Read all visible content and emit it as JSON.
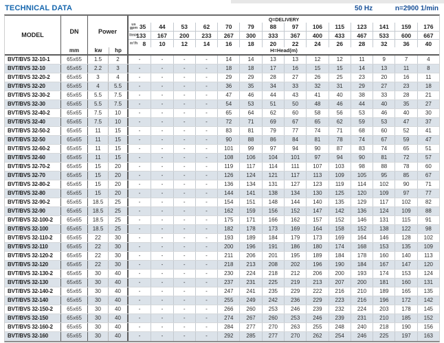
{
  "page": {
    "title": "TECHNICAL DATA",
    "frequency": "50 Hz",
    "speed": "n=2900 1/min"
  },
  "colors": {
    "title-blue": "#1566ae",
    "specs-blue": "#174f97",
    "stripe": "#dbe2e9"
  },
  "table": {
    "header": {
      "model": "MODEL",
      "dn": "DN",
      "dn_unit": "mm",
      "power": "Power",
      "kw": "kw",
      "hp": "hp",
      "delivery_label": "Q=DELIVERY",
      "head_label": "H=Head(m)",
      "flow_units": [
        "us gpm",
        "l/min",
        "m³/h"
      ],
      "gpm": [
        "35",
        "44",
        "53",
        "62",
        "70",
        "79",
        "88",
        "97",
        "106",
        "115",
        "123",
        "141",
        "159",
        "176"
      ],
      "lmin": [
        "133",
        "167",
        "200",
        "233",
        "267",
        "300",
        "333",
        "367",
        "400",
        "433",
        "467",
        "533",
        "600",
        "667"
      ],
      "m3h": [
        "8",
        "10",
        "12",
        "14",
        "16",
        "18",
        "20",
        "22",
        "24",
        "26",
        "28",
        "32",
        "36",
        "40"
      ]
    },
    "rows": [
      {
        "model": "BVT/BVS 32-10-1",
        "dn": "65x65",
        "kw": "1.5",
        "hp": "2",
        "head": [
          "-",
          "-",
          "-",
          "-",
          "14",
          "14",
          "13",
          "13",
          "12",
          "12",
          "11",
          "9",
          "7",
          "4"
        ]
      },
      {
        "model": "BVT/BVS 32-10",
        "dn": "65x65",
        "kw": "2.2",
        "hp": "3",
        "head": [
          "-",
          "-",
          "-",
          "-",
          "18",
          "18",
          "17",
          "16",
          "15",
          "15",
          "14",
          "13",
          "11",
          "8"
        ]
      },
      {
        "model": "BVT/BVS 32-20-2",
        "dn": "65x65",
        "kw": "3",
        "hp": "4",
        "head": [
          "-",
          "-",
          "-",
          "-",
          "29",
          "29",
          "28",
          "27",
          "26",
          "25",
          "23",
          "20",
          "16",
          "11"
        ]
      },
      {
        "model": "BVT/BVS 32-20",
        "dn": "65x65",
        "kw": "4",
        "hp": "5.5",
        "head": [
          "-",
          "-",
          "-",
          "-",
          "36",
          "35",
          "34",
          "33",
          "32",
          "31",
          "29",
          "27",
          "23",
          "18"
        ]
      },
      {
        "model": "BVT/BVS 32-30-2",
        "dn": "65x65",
        "kw": "5.5",
        "hp": "7.5",
        "head": [
          "-",
          "-",
          "-",
          "-",
          "47",
          "46",
          "44",
          "43",
          "41",
          "40",
          "38",
          "33",
          "28",
          "21"
        ]
      },
      {
        "model": "BVT/BVS 32-30",
        "dn": "65x65",
        "kw": "5.5",
        "hp": "7.5",
        "head": [
          "-",
          "-",
          "-",
          "-",
          "54",
          "53",
          "51",
          "50",
          "48",
          "46",
          "44",
          "40",
          "35",
          "27"
        ]
      },
      {
        "model": "BVT/BVS 32-40-2",
        "dn": "65x65",
        "kw": "7.5",
        "hp": "10",
        "head": [
          "-",
          "-",
          "-",
          "-",
          "65",
          "64",
          "62",
          "60",
          "58",
          "56",
          "53",
          "46",
          "40",
          "30"
        ]
      },
      {
        "model": "BVT/BVS 32-40",
        "dn": "65x65",
        "kw": "7.5",
        "hp": "10",
        "head": [
          "-",
          "-",
          "-",
          "-",
          "72",
          "71",
          "69",
          "67",
          "65",
          "62",
          "59",
          "53",
          "47",
          "37"
        ]
      },
      {
        "model": "BVT/BVS 32-50-2",
        "dn": "65x65",
        "kw": "11",
        "hp": "15",
        "head": [
          "-",
          "-",
          "-",
          "-",
          "83",
          "81",
          "79",
          "77",
          "74",
          "71",
          "68",
          "60",
          "52",
          "41"
        ]
      },
      {
        "model": "BVT/BVS 32-50",
        "dn": "65x65",
        "kw": "11",
        "hp": "15",
        "head": [
          "-",
          "-",
          "-",
          "-",
          "90",
          "88",
          "86",
          "84",
          "81",
          "78",
          "74",
          "67",
          "59",
          "47"
        ]
      },
      {
        "model": "BVT/BVS 32-60-2",
        "dn": "65x65",
        "kw": "11",
        "hp": "15",
        "head": [
          "-",
          "-",
          "-",
          "-",
          "101",
          "99",
          "97",
          "94",
          "90",
          "87",
          "83",
          "74",
          "65",
          "51"
        ]
      },
      {
        "model": "BVT/BVS 32-60",
        "dn": "65x65",
        "kw": "11",
        "hp": "15",
        "head": [
          "-",
          "-",
          "-",
          "-",
          "108",
          "106",
          "104",
          "101",
          "97",
          "94",
          "90",
          "81",
          "72",
          "57"
        ]
      },
      {
        "model": "BVT/BVS 32-70-2",
        "dn": "65x65",
        "kw": "15",
        "hp": "20",
        "head": [
          "-",
          "-",
          "-",
          "-",
          "119",
          "117",
          "114",
          "111",
          "107",
          "103",
          "98",
          "88",
          "78",
          "60"
        ]
      },
      {
        "model": "BVT/BVS 32-70",
        "dn": "65x65",
        "kw": "15",
        "hp": "20",
        "head": [
          "-",
          "-",
          "-",
          "-",
          "126",
          "124",
          "121",
          "117",
          "113",
          "109",
          "105",
          "95",
          "85",
          "67"
        ]
      },
      {
        "model": "BVT/BVS 32-80-2",
        "dn": "65x65",
        "kw": "15",
        "hp": "20",
        "head": [
          "-",
          "-",
          "-",
          "-",
          "136",
          "134",
          "131",
          "127",
          "123",
          "119",
          "114",
          "102",
          "90",
          "71"
        ]
      },
      {
        "model": "BVT/BVS 32-80",
        "dn": "65x65",
        "kw": "15",
        "hp": "20",
        "head": [
          "-",
          "-",
          "-",
          "-",
          "144",
          "141",
          "138",
          "134",
          "130",
          "125",
          "120",
          "109",
          "97",
          "77"
        ]
      },
      {
        "model": "BVT/BVS 32-90-2",
        "dn": "65x65",
        "kw": "18.5",
        "hp": "25",
        "head": [
          "-",
          "-",
          "-",
          "-",
          "154",
          "151",
          "148",
          "144",
          "140",
          "135",
          "129",
          "117",
          "102",
          "82"
        ]
      },
      {
        "model": "BVT/BVS 32-90",
        "dn": "65x65",
        "kw": "18.5",
        "hp": "25",
        "head": [
          "-",
          "-",
          "-",
          "-",
          "162",
          "159",
          "156",
          "152",
          "147",
          "142",
          "136",
          "124",
          "109",
          "88"
        ]
      },
      {
        "model": "BVT/BVS 32-100-2",
        "dn": "65x65",
        "kw": "18.5",
        "hp": "25",
        "head": [
          "-",
          "-",
          "-",
          "-",
          "175",
          "171",
          "166",
          "162",
          "157",
          "152",
          "146",
          "131",
          "115",
          "91"
        ]
      },
      {
        "model": "BVT/BVS 32-100",
        "dn": "65x65",
        "kw": "18.5",
        "hp": "25",
        "head": [
          "-",
          "-",
          "-",
          "-",
          "182",
          "178",
          "173",
          "169",
          "164",
          "158",
          "152",
          "138",
          "122",
          "98"
        ]
      },
      {
        "model": "BVT/BVS 32-110-2",
        "dn": "65x65",
        "kw": "22",
        "hp": "30",
        "head": [
          "-",
          "-",
          "-",
          "-",
          "193",
          "189",
          "184",
          "179",
          "173",
          "169",
          "164",
          "146",
          "128",
          "102"
        ]
      },
      {
        "model": "BVT/BVS 32-110",
        "dn": "65x65",
        "kw": "22",
        "hp": "30",
        "head": [
          "-",
          "-",
          "-",
          "-",
          "200",
          "196",
          "191",
          "186",
          "180",
          "174",
          "168",
          "153",
          "135",
          "109"
        ]
      },
      {
        "model": "BVT/BVS 32-120-2",
        "dn": "65x65",
        "kw": "22",
        "hp": "30",
        "head": [
          "-",
          "-",
          "-",
          "-",
          "211",
          "206",
          "201",
          "195",
          "189",
          "184",
          "178",
          "160",
          "140",
          "113"
        ]
      },
      {
        "model": "BVT/BVS 32-120",
        "dn": "65x65",
        "kw": "22",
        "hp": "30",
        "head": [
          "-",
          "-",
          "-",
          "-",
          "218",
          "213",
          "208",
          "202",
          "196",
          "190",
          "184",
          "167",
          "147",
          "120"
        ]
      },
      {
        "model": "BVT/BVS 32-130-2",
        "dn": "65x65",
        "kw": "30",
        "hp": "40",
        "head": [
          "-",
          "-",
          "-",
          "-",
          "230",
          "224",
          "218",
          "212",
          "206",
          "200",
          "193",
          "174",
          "153",
          "124"
        ]
      },
      {
        "model": "BVT/BVS 32-130",
        "dn": "65x65",
        "kw": "30",
        "hp": "40",
        "head": [
          "-",
          "-",
          "-",
          "-",
          "237",
          "231",
          "225",
          "219",
          "213",
          "207",
          "200",
          "181",
          "160",
          "131"
        ]
      },
      {
        "model": "BVT/BVS 32-140-2",
        "dn": "65x65",
        "kw": "30",
        "hp": "40",
        "head": [
          "-",
          "-",
          "-",
          "-",
          "247",
          "241",
          "235",
          "229",
          "222",
          "216",
          "210",
          "189",
          "165",
          "135"
        ]
      },
      {
        "model": "BVT/BVS 32-140",
        "dn": "65x65",
        "kw": "30",
        "hp": "40",
        "head": [
          "-",
          "-",
          "-",
          "-",
          "255",
          "249",
          "242",
          "236",
          "229",
          "223",
          "216",
          "196",
          "172",
          "142"
        ]
      },
      {
        "model": "BVT/BVS 32-150-2",
        "dn": "65x65",
        "kw": "30",
        "hp": "40",
        "head": [
          "-",
          "-",
          "-",
          "-",
          "266",
          "260",
          "253",
          "246",
          "239",
          "232",
          "224",
          "203",
          "178",
          "145"
        ]
      },
      {
        "model": "BVT/BVS 32-150",
        "dn": "65x65",
        "kw": "30",
        "hp": "40",
        "head": [
          "-",
          "-",
          "-",
          "-",
          "274",
          "267",
          "260",
          "253",
          "246",
          "239",
          "231",
          "210",
          "185",
          "152"
        ]
      },
      {
        "model": "BVT/BVS 32-160-2",
        "dn": "65x65",
        "kw": "30",
        "hp": "40",
        "head": [
          "-",
          "-",
          "-",
          "-",
          "284",
          "277",
          "270",
          "263",
          "255",
          "248",
          "240",
          "218",
          "190",
          "156"
        ]
      },
      {
        "model": "BVT/BVS 32-160",
        "dn": "65x65",
        "kw": "30",
        "hp": "40",
        "head": [
          "-",
          "-",
          "-",
          "-",
          "292",
          "285",
          "277",
          "270",
          "262",
          "254",
          "246",
          "225",
          "197",
          "163"
        ]
      }
    ]
  }
}
